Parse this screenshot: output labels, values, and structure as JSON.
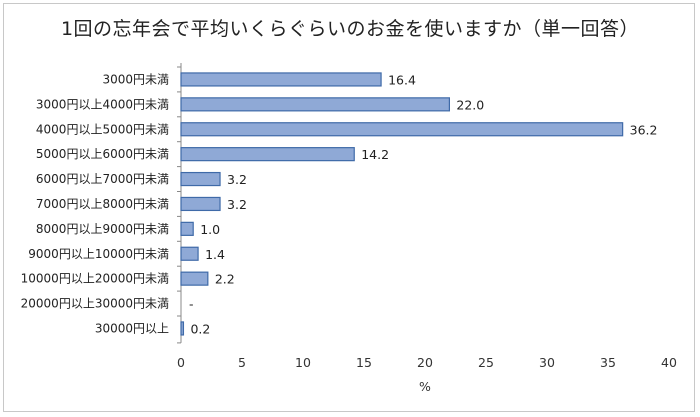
{
  "chart_data": {
    "type": "bar",
    "orientation": "horizontal",
    "title": "1回の忘年会で平均いくらぐらいのお金を使いますか（単一回答）",
    "categories": [
      "3000円未満",
      "3000円以上4000円未満",
      "4000円以上5000円未満",
      "5000円以上6000円未満",
      "6000円以上7000円未満",
      "7000円以上8000円未満",
      "8000円以上9000円未満",
      "9000円以上10000円未満",
      "10000円以上20000円未満",
      "20000円以上30000円未満",
      "30000円以上"
    ],
    "values": [
      16.4,
      22.0,
      36.2,
      14.2,
      3.2,
      3.2,
      1.0,
      1.4,
      2.2,
      null,
      0.2
    ],
    "value_labels": [
      "16.4",
      "22.0",
      "36.2",
      "14.2",
      "3.2",
      "3.2",
      "1.0",
      "1.4",
      "2.2",
      "-",
      "0.2"
    ],
    "xlabel": "%",
    "xlim": [
      0,
      40
    ],
    "xticks": [
      "0",
      "5",
      "10",
      "15",
      "20",
      "25",
      "30",
      "35",
      "40"
    ],
    "grid": false,
    "legend": "none",
    "bar_color": "#8fa9d6",
    "bar_border_color": "#3f6aa8"
  }
}
